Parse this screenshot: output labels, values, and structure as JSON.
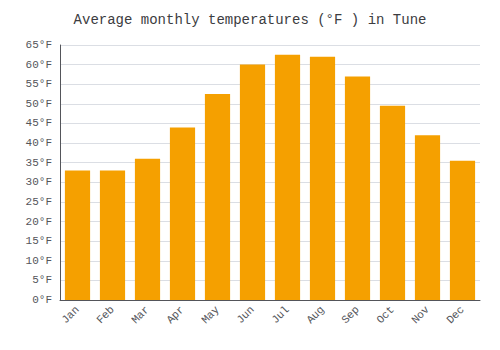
{
  "chart_data": {
    "type": "bar",
    "title": "Average monthly temperatures (°F ) in Tune",
    "categories": [
      "Jan",
      "Feb",
      "Mar",
      "Apr",
      "May",
      "Jun",
      "Jul",
      "Aug",
      "Sep",
      "Oct",
      "Nov",
      "Dec"
    ],
    "values": [
      33,
      33,
      36,
      44,
      52.5,
      60,
      62.5,
      62,
      57,
      49.5,
      42,
      35.5
    ],
    "color": "#F5A000",
    "ylim": [
      0,
      65
    ],
    "yticks": [
      {
        "value": 0,
        "label": "0°F"
      },
      {
        "value": 5,
        "label": "5°F"
      },
      {
        "value": 10,
        "label": "10°F"
      },
      {
        "value": 15,
        "label": "15°F"
      },
      {
        "value": 20,
        "label": "20°F"
      },
      {
        "value": 25,
        "label": "25°F"
      },
      {
        "value": 30,
        "label": "30°F"
      },
      {
        "value": 35,
        "label": "35°F"
      },
      {
        "value": 40,
        "label": "40°F"
      },
      {
        "value": 45,
        "label": "45°F"
      },
      {
        "value": 50,
        "label": "50°F"
      },
      {
        "value": 55,
        "label": "55°F"
      },
      {
        "value": 60,
        "label": "60°F"
      },
      {
        "value": 65,
        "label": "65°F"
      }
    ],
    "grid": true
  }
}
